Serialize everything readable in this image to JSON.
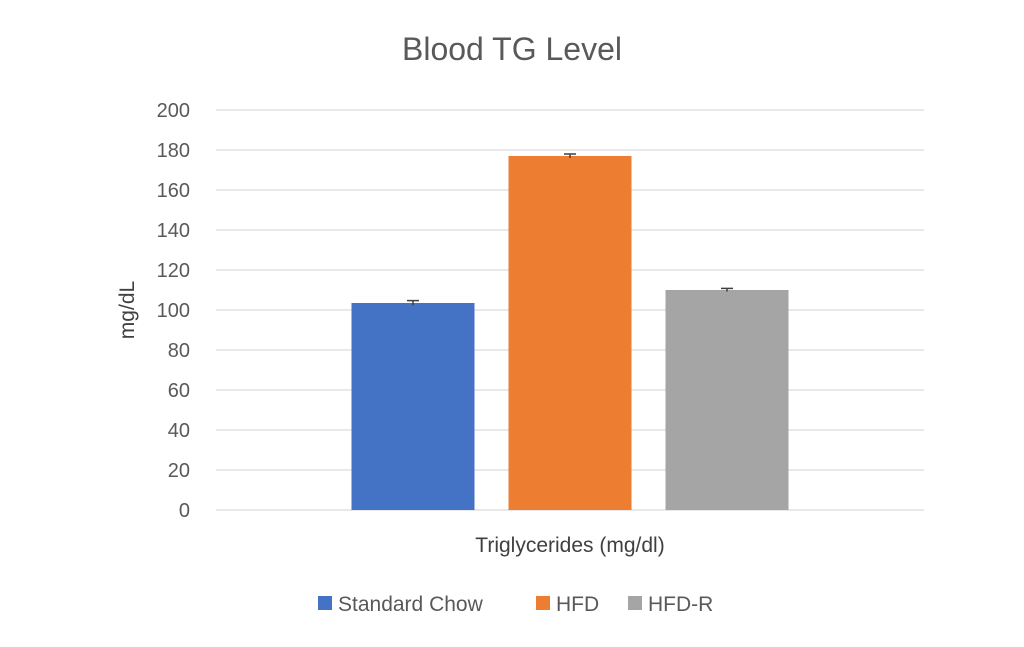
{
  "chart_data": {
    "type": "bar",
    "title": "Blood TG Level",
    "xlabel": "Triglycerides (mg/dl)",
    "ylabel": "mg/dL",
    "ylim": [
      0,
      200
    ],
    "yticks": [
      0,
      20,
      40,
      60,
      80,
      100,
      120,
      140,
      160,
      180,
      200
    ],
    "grid": true,
    "legend_position": "bottom",
    "series": [
      {
        "name": "Standard Chow",
        "value": 103.5,
        "error": 1.2,
        "color": "#4472c4"
      },
      {
        "name": "HFD",
        "value": 177,
        "error": 1.0,
        "color": "#ed7d31"
      },
      {
        "name": "HFD-R",
        "value": 110,
        "error": 0.8,
        "color": "#a5a5a5"
      }
    ]
  }
}
